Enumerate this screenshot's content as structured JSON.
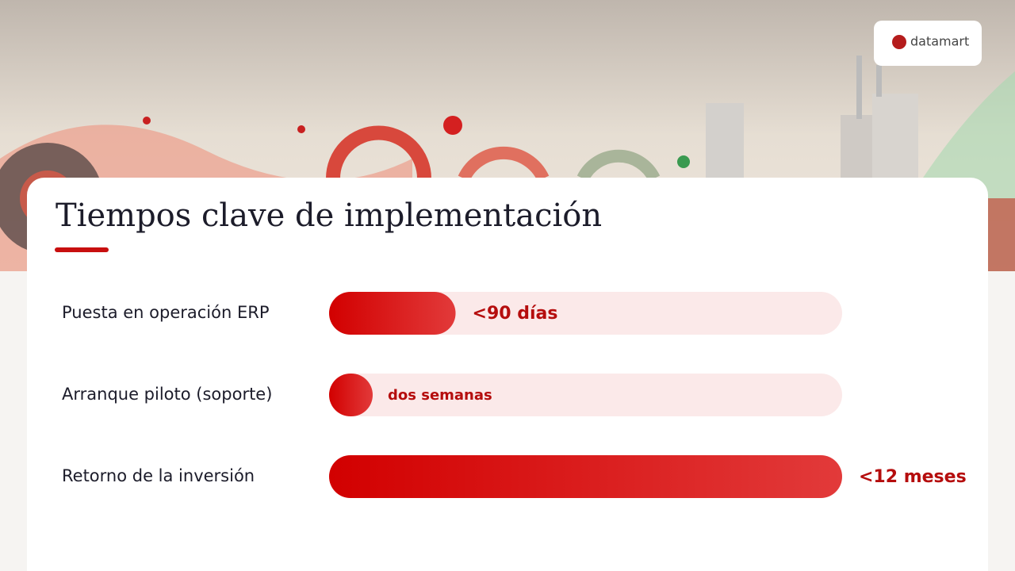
{
  "logo": "datamart",
  "chart_data": {
    "type": "bar",
    "orientation": "horizontal",
    "title": "Tiempos clave de implementación",
    "categories": [
      "Puesta en operación ERP",
      "Arranque piloto (soporte)",
      "Retorno de la inversión"
    ],
    "values": [
      90,
      14,
      365
    ],
    "value_labels": [
      "<90 días",
      "dos semanas",
      "<12 meses"
    ],
    "xlim": [
      0,
      365
    ],
    "color": "#d40a0a"
  }
}
